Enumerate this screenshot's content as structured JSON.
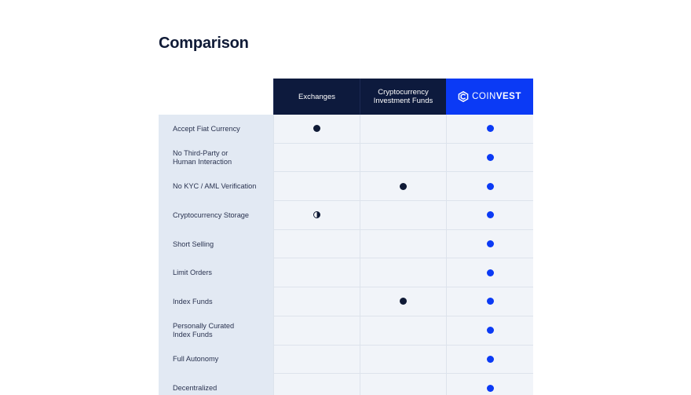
{
  "title": "Comparison",
  "columns": {
    "exchanges": "Exchanges",
    "funds": "Cryptocurrency\nInvestment Funds",
    "brand_light": "COIN",
    "brand_bold": "VEST"
  },
  "colors": {
    "navy": "#0d1a3d",
    "brand_blue": "#0b3af5",
    "label_bg": "#e2e9f3",
    "cell_bg": "#f1f4f9"
  },
  "rows": [
    {
      "label": "Accept Fiat Currency",
      "exchanges": "full",
      "funds": "none",
      "coinvest": "full"
    },
    {
      "label": "No Third-Party or\nHuman Interaction",
      "exchanges": "none",
      "funds": "none",
      "coinvest": "full"
    },
    {
      "label": "No KYC / AML Verification",
      "exchanges": "none",
      "funds": "full",
      "coinvest": "full"
    },
    {
      "label": "Cryptocurrency Storage",
      "exchanges": "half",
      "funds": "none",
      "coinvest": "full"
    },
    {
      "label": "Short Selling",
      "exchanges": "none",
      "funds": "none",
      "coinvest": "full"
    },
    {
      "label": "Limit Orders",
      "exchanges": "none",
      "funds": "none",
      "coinvest": "full"
    },
    {
      "label": "Index Funds",
      "exchanges": "none",
      "funds": "full",
      "coinvest": "full"
    },
    {
      "label": "Personally Curated\nIndex Funds",
      "exchanges": "none",
      "funds": "none",
      "coinvest": "full"
    },
    {
      "label": "Full Autonomy",
      "exchanges": "none",
      "funds": "none",
      "coinvest": "full"
    },
    {
      "label": "Decentralized",
      "exchanges": "none",
      "funds": "none",
      "coinvest": "full"
    }
  ]
}
